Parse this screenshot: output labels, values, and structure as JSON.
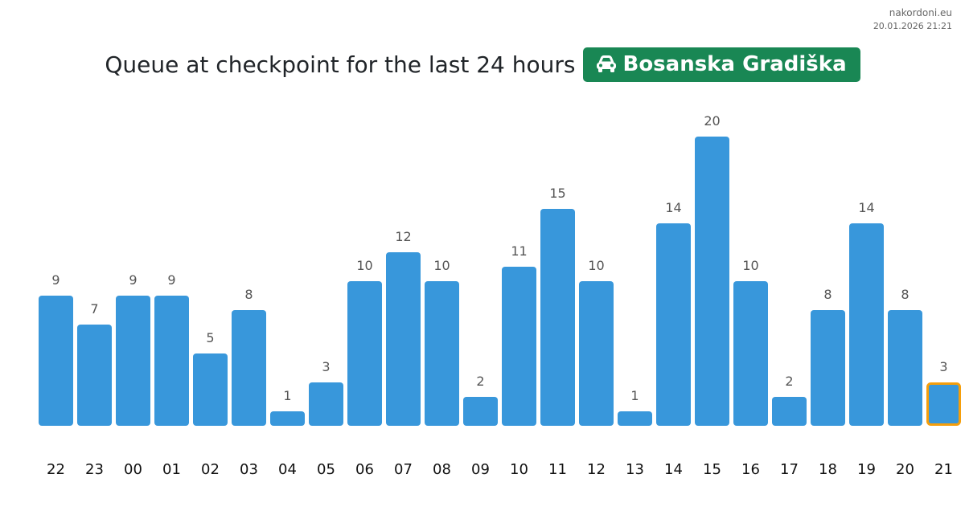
{
  "header": {
    "site_name": "nakordoni.eu",
    "timestamp": "20.01.2026 21:21"
  },
  "title": {
    "text": "Queue at checkpoint for the last 24 hours",
    "checkpoint_name": "Bosanska Gradiška",
    "checkpoint_icon": "car-icon",
    "badge_color": "#198754"
  },
  "chart_data": {
    "type": "bar",
    "title": "Queue at checkpoint for the last 24 hours",
    "categories": [
      "22",
      "23",
      "00",
      "01",
      "02",
      "03",
      "04",
      "05",
      "06",
      "07",
      "08",
      "09",
      "10",
      "11",
      "12",
      "13",
      "14",
      "15",
      "16",
      "17",
      "18",
      "19",
      "20",
      "21"
    ],
    "values": [
      9,
      7,
      9,
      9,
      5,
      8,
      1,
      3,
      10,
      12,
      10,
      2,
      11,
      15,
      10,
      1,
      14,
      20,
      10,
      2,
      8,
      14,
      8,
      3
    ],
    "ylim": [
      0,
      20
    ],
    "grid": false,
    "bar_color": "#3897db",
    "highlight_index": 23,
    "highlight_color": "#f59e0b"
  }
}
